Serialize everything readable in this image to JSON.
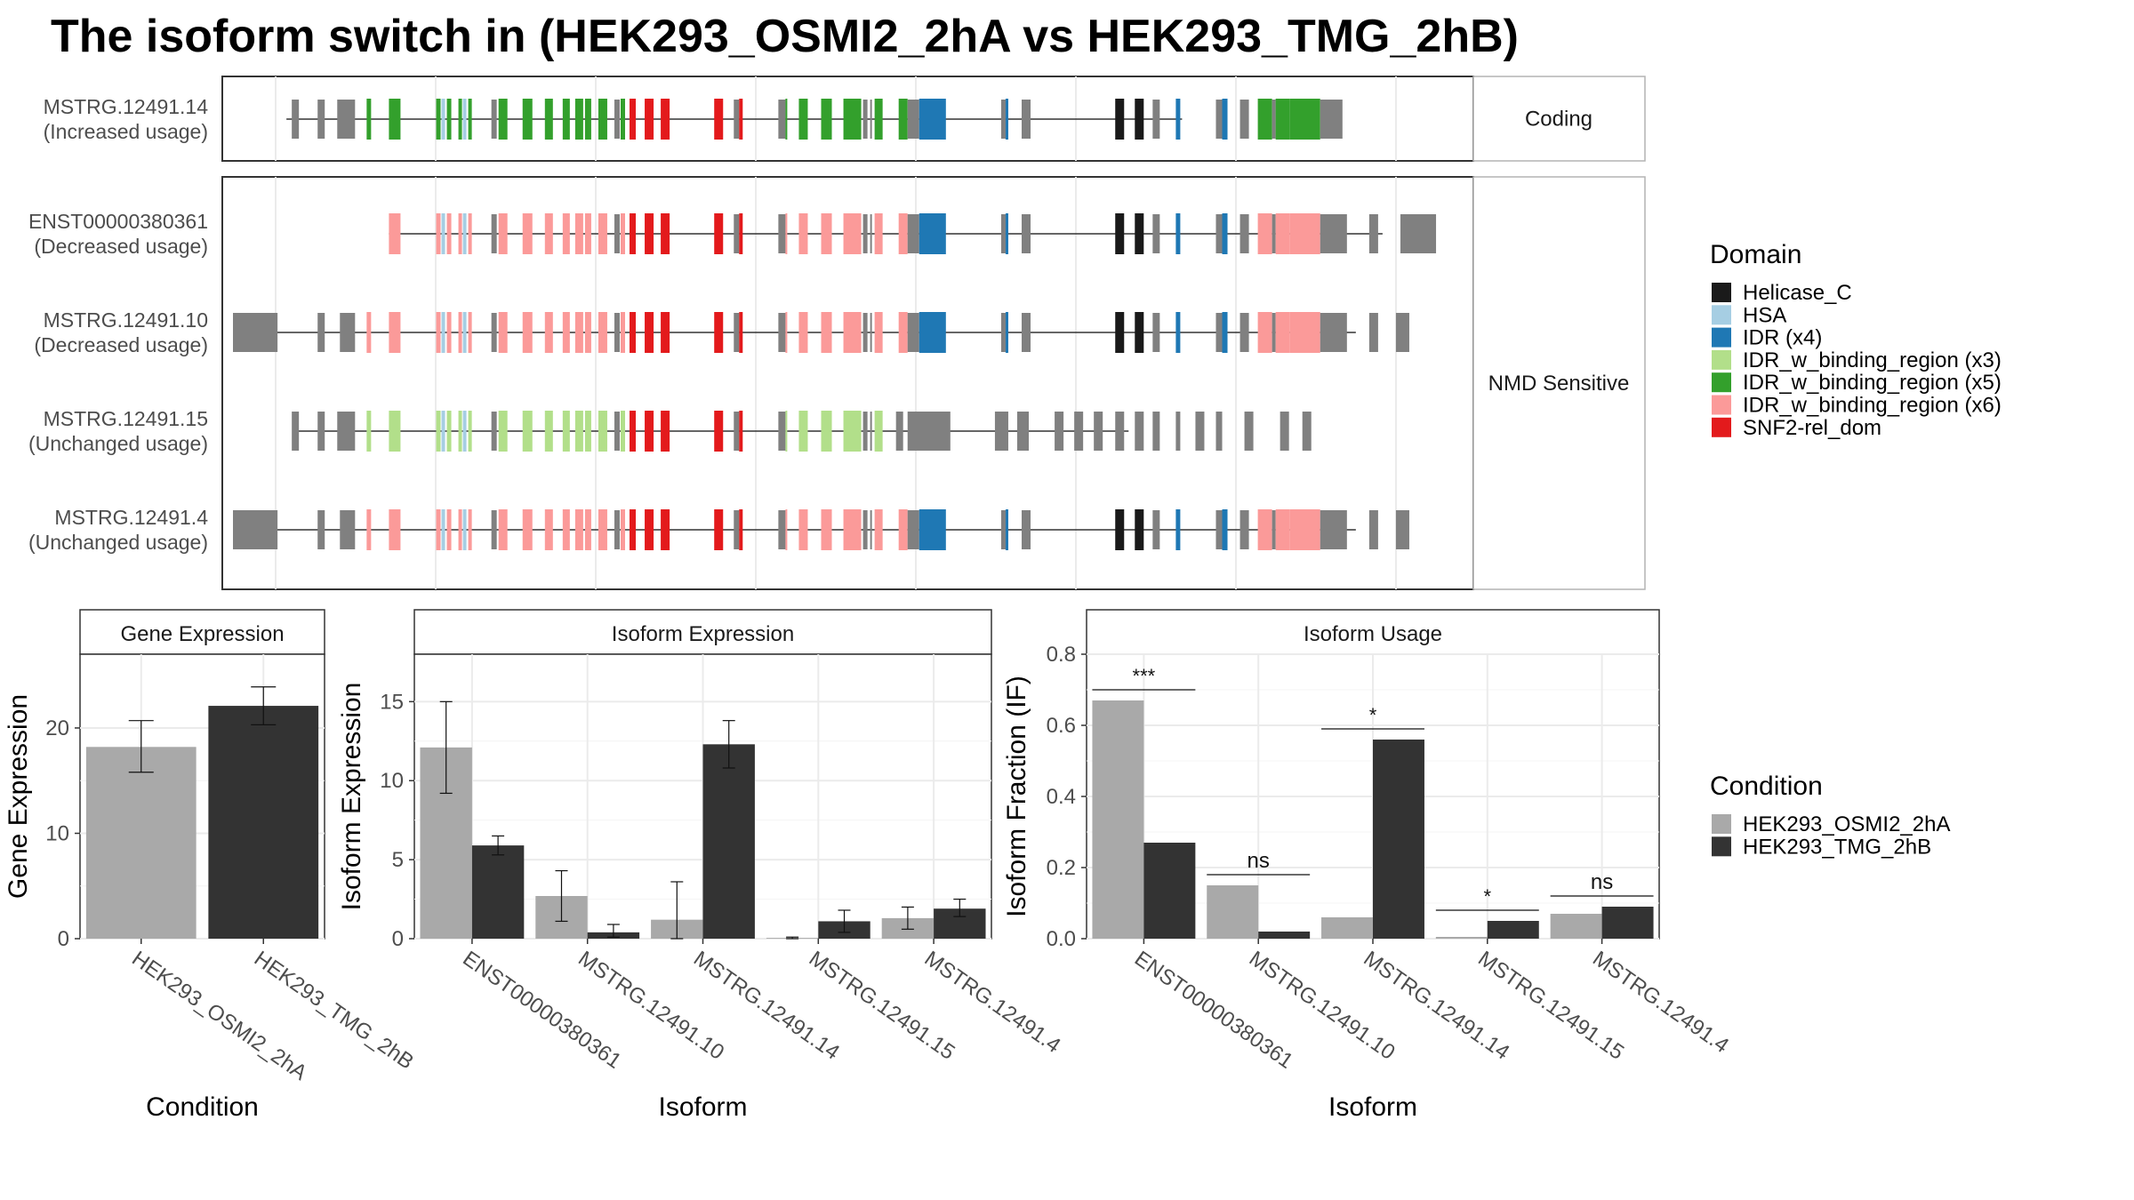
{
  "title": "The isoform switch in  (HEK293_OSMI2_2hA vs HEK293_TMG_2hB)",
  "colors": {
    "Helicase_C": "#1a1a1a",
    "HSA": "#a6cee3",
    "IDR (x4)": "#1f78b4",
    "IDR_w_binding_region (x3)": "#b2df8a",
    "IDR_w_binding_region (x5)": "#33a02c",
    "IDR_w_binding_region (x6)": "#fb9a99",
    "SNF2-rel_dom": "#e31a1c",
    "none": "#808080",
    "HEK293_OSMI2_2hA": "#a9a9a9",
    "HEK293_TMG_2hB": "#333333"
  },
  "structure": {
    "genomic_range": [
      0,
      1330
    ],
    "intron_ranges": {
      "MSTRG.12491.14": [
        60,
        1065
      ],
      "ENST00000380361": [
        175,
        1290
      ],
      "MSTRG.12491.10": [
        15,
        1260
      ],
      "MSTRG.12491.15": [
        68,
        1005
      ],
      "MSTRG.12491.4": [
        0,
        1260
      ]
    },
    "groups": [
      {
        "label": "Coding",
        "rows": [
          {
            "id": "MSTRG.12491.14",
            "name": "MSTRG.12491.14",
            "usage": "(Increased usage)"
          }
        ]
      },
      {
        "label": "NMD Sensitive",
        "rows": [
          {
            "id": "ENST00000380361",
            "name": "ENST00000380361",
            "usage": "(Decreased usage)"
          },
          {
            "id": "MSTRG.12491.10",
            "name": "MSTRG.12491.10",
            "usage": "(Decreased usage)"
          },
          {
            "id": "MSTRG.12491.15",
            "name": "MSTRG.12491.15",
            "usage": "(Unchanged usage)"
          },
          {
            "id": "MSTRG.12491.4",
            "name": "MSTRG.12491.4",
            "usage": "(Unchanged usage)"
          }
        ]
      }
    ],
    "exon_templates": {
      "start_long": [
        [
          0,
          50,
          "none"
        ],
        [
          95,
          103,
          "none"
        ],
        [
          120,
          137,
          "none"
        ],
        [
          150,
          155,
          "S"
        ]
      ],
      "start_short": [
        [
          66,
          74,
          "none"
        ],
        [
          95,
          103,
          "none"
        ],
        [
          117,
          137,
          "none"
        ],
        [
          150,
          155,
          "S"
        ]
      ],
      "core": [
        [
          175,
          188,
          "S"
        ],
        [
          228,
          233,
          "S"
        ],
        [
          234,
          238,
          "HSA"
        ],
        [
          240,
          245,
          "S"
        ],
        [
          253,
          257,
          "S"
        ],
        [
          258,
          262,
          "HSA"
        ],
        [
          264,
          268,
          "S"
        ],
        [
          290,
          296,
          "none"
        ],
        [
          298,
          308,
          "S"
        ],
        [
          325,
          336,
          "S"
        ],
        [
          350,
          359,
          "S"
        ],
        [
          370,
          378,
          "S"
        ],
        [
          384,
          393,
          "S"
        ],
        [
          395,
          402,
          "S"
        ],
        [
          410,
          420,
          "S"
        ],
        [
          428,
          434,
          "none"
        ],
        [
          435,
          440,
          "S"
        ],
        [
          445,
          452,
          "SNF2-rel_dom"
        ],
        [
          462,
          472,
          "SNF2-rel_dom"
        ],
        [
          480,
          490,
          "SNF2-rel_dom"
        ],
        [
          540,
          550,
          "SNF2-rel_dom"
        ],
        [
          562,
          568,
          "none"
        ],
        [
          568,
          572,
          "SNF2-rel_dom"
        ],
        [
          612,
          620,
          "none"
        ],
        [
          620,
          622,
          "S"
        ],
        [
          635,
          645,
          "S"
        ],
        [
          660,
          672,
          "S"
        ],
        [
          685,
          705,
          "S"
        ],
        [
          707,
          712,
          "none"
        ],
        [
          715,
          717,
          "none"
        ],
        [
          720,
          729,
          "S"
        ],
        [
          747,
          757,
          "S"
        ],
        [
          757,
          770,
          "none"
        ],
        [
          770,
          800,
          "IDR (x4)"
        ],
        [
          862,
          867,
          "none"
        ],
        [
          867,
          870,
          "IDR (x4)"
        ],
        [
          885,
          895,
          "none"
        ],
        [
          990,
          1000,
          "Helicase_C"
        ],
        [
          1012,
          1022,
          "Helicase_C"
        ],
        [
          1032,
          1040,
          "none"
        ],
        [
          1058,
          1063,
          "IDR (x4)"
        ],
        [
          1103,
          1110,
          "none"
        ],
        [
          1110,
          1116,
          "IDR (x4)"
        ],
        [
          1130,
          1140,
          "none"
        ],
        [
          1150,
          1166,
          "S"
        ],
        [
          1166,
          1170,
          "none"
        ],
        [
          1170,
          1186,
          "S"
        ],
        [
          1186,
          1220,
          "S"
        ]
      ],
      "tail_long": [
        [
          1220,
          1250,
          "none"
        ],
        [
          1275,
          1285,
          "none"
        ],
        [
          1310,
          1350,
          "none"
        ]
      ],
      "tail_short": [
        [
          1220,
          1250,
          "none"
        ],
        [
          1275,
          1285,
          "none"
        ],
        [
          1305,
          1320,
          "none"
        ]
      ],
      "t15_extra": [
        [
          744,
          752,
          "none"
        ],
        [
          757,
          805,
          "none"
        ],
        [
          855,
          870,
          "none"
        ],
        [
          880,
          893,
          "none"
        ],
        [
          922,
          932,
          "none"
        ],
        [
          944,
          954,
          "none"
        ],
        [
          966,
          976,
          "none"
        ],
        [
          990,
          1000,
          "none"
        ],
        [
          1012,
          1022,
          "none"
        ],
        [
          1032,
          1040,
          "none"
        ],
        [
          1058,
          1063,
          "none"
        ],
        [
          1080,
          1090,
          "none"
        ],
        [
          1103,
          1110,
          "none"
        ],
        [
          1135,
          1145,
          "none"
        ],
        [
          1175,
          1185,
          "none"
        ],
        [
          1200,
          1210,
          "none"
        ]
      ]
    },
    "exon_sets": {
      "MSTRG.12491.14": {
        "parts": [
          "start_short",
          "core"
        ],
        "pal": "x5",
        "tail": [
          [
            1220,
            1245,
            "none"
          ]
        ]
      },
      "ENST00000380361": {
        "parts": [
          "core",
          "tail_long"
        ],
        "pal": "x6"
      },
      "MSTRG.12491.10": {
        "parts": [
          "start_long",
          "core",
          "tail_short"
        ],
        "pal": "x6"
      },
      "MSTRG.12491.15": {
        "parts": [
          "start_short",
          "core"
        ],
        "pal": "x3",
        "cut": 740,
        "extra": "t15_extra"
      },
      "MSTRG.12491.4": {
        "parts": [
          "start_long",
          "core",
          "tail_short"
        ],
        "pal": "x6",
        "wide_start": true
      }
    }
  },
  "legends": {
    "domain_title": "Domain",
    "domain_items": [
      "Helicase_C",
      "HSA",
      "IDR (x4)",
      "IDR_w_binding_region (x3)",
      "IDR_w_binding_region (x5)",
      "IDR_w_binding_region (x6)",
      "SNF2-rel_dom"
    ],
    "condition_title": "Condition",
    "condition_items": [
      "HEK293_OSMI2_2hA",
      "HEK293_TMG_2hB"
    ]
  },
  "chart_data": [
    {
      "type": "bar",
      "title": "Gene Expression",
      "xlabel": "Condition",
      "ylabel": "Gene Expression",
      "ylim": [
        0,
        27
      ],
      "yticks": [
        0,
        10,
        20
      ],
      "categories": [
        "HEK293_OSMI2_2hA",
        "HEK293_TMG_2hB"
      ],
      "values": [
        18.2,
        22.1
      ],
      "err_low": [
        15.8,
        20.3
      ],
      "err_high": [
        20.7,
        23.9
      ]
    },
    {
      "type": "bar",
      "title": "Isoform Expression",
      "xlabel": "Isoform",
      "ylabel": "Isoform Expression",
      "ylim": [
        0,
        18
      ],
      "yticks": [
        0,
        5,
        10,
        15
      ],
      "categories": [
        "ENST00000380361",
        "MSTRG.12491.10",
        "MSTRG.12491.14",
        "MSTRG.12491.15",
        "MSTRG.12491.4"
      ],
      "series": [
        {
          "name": "HEK293_OSMI2_2hA",
          "values": [
            12.1,
            2.7,
            1.2,
            0.05,
            1.3
          ],
          "err_low": [
            9.2,
            1.1,
            0.0,
            0.0,
            0.6
          ],
          "err_high": [
            15.0,
            4.3,
            3.6,
            0.1,
            2.0
          ]
        },
        {
          "name": "HEK293_TMG_2hB",
          "values": [
            5.9,
            0.4,
            12.3,
            1.1,
            1.9
          ],
          "err_low": [
            5.3,
            0.1,
            10.8,
            0.4,
            1.4
          ],
          "err_high": [
            6.5,
            0.9,
            13.8,
            1.8,
            2.5
          ]
        }
      ]
    },
    {
      "type": "bar",
      "title": "Isoform Usage",
      "xlabel": "Isoform",
      "ylabel": "Isoform Fraction (IF)",
      "ylim": [
        0,
        0.8
      ],
      "yticks": [
        0.0,
        0.2,
        0.4,
        0.6,
        0.8
      ],
      "ytick_labels": [
        "0.0",
        "0.2",
        "0.4",
        "0.6",
        "0.8"
      ],
      "categories": [
        "ENST00000380361",
        "MSTRG.12491.10",
        "MSTRG.12491.14",
        "MSTRG.12491.15",
        "MSTRG.12491.4"
      ],
      "series": [
        {
          "name": "HEK293_OSMI2_2hA",
          "values": [
            0.67,
            0.15,
            0.06,
            0.005,
            0.07
          ]
        },
        {
          "name": "HEK293_TMG_2hB",
          "values": [
            0.27,
            0.02,
            0.56,
            0.05,
            0.09
          ]
        }
      ],
      "significance": [
        "***",
        "ns",
        "*",
        "*",
        "ns"
      ]
    }
  ]
}
